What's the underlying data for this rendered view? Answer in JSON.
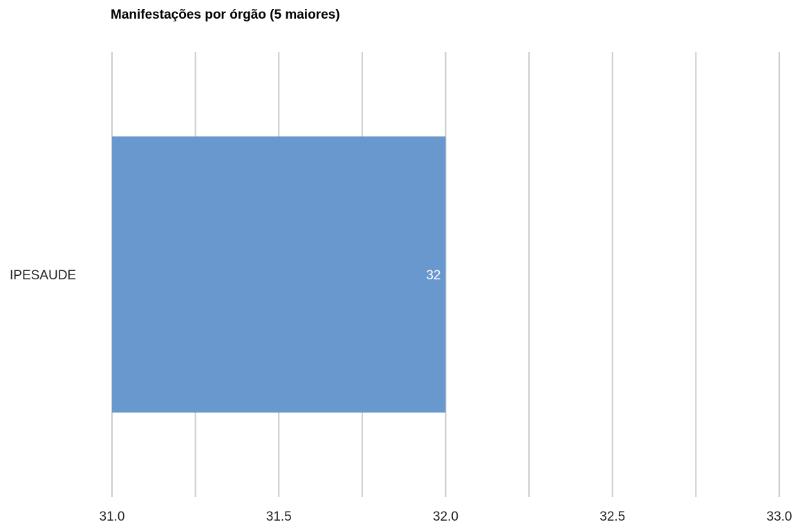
{
  "chart_data": {
    "type": "bar",
    "orientation": "horizontal",
    "title": "Manifestações por órgão (5 maiores)",
    "categories": [
      "IPESAUDE"
    ],
    "values": [
      32
    ],
    "data_labels": [
      "32"
    ],
    "xlim": [
      31.0,
      33.0
    ],
    "x_ticks": [
      31.0,
      31.5,
      32.0,
      32.5,
      33.0
    ],
    "x_tick_labels": [
      "31.0",
      "31.5",
      "32.0",
      "32.5",
      "33.0"
    ],
    "minor_gridlines": true,
    "grid": true,
    "legend": "none",
    "xlabel": "",
    "ylabel": "",
    "bar_color": "#6898CD",
    "grid_color": "#cccccc"
  }
}
